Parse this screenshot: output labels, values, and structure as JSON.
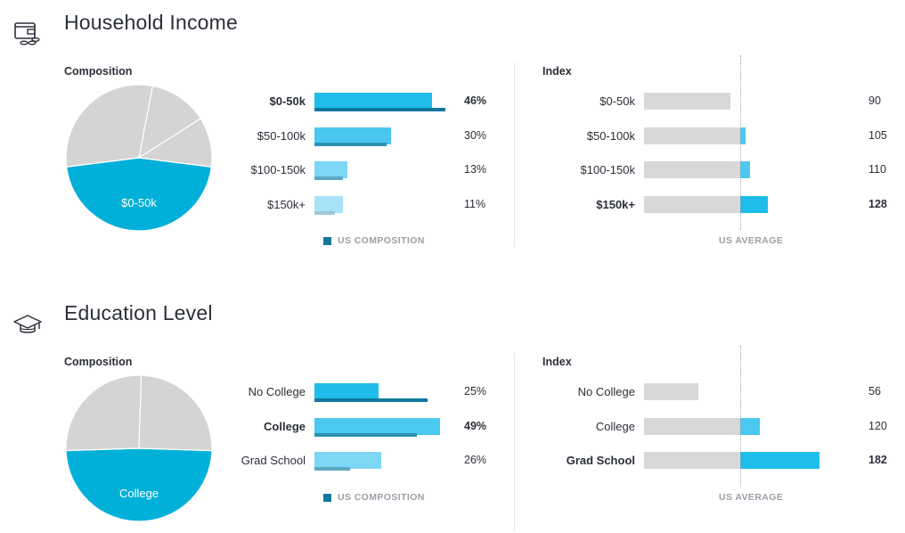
{
  "colors": {
    "pie_highlight": "#00b0d8",
    "pie_gray": "#d4d4d4",
    "pie_stroke": "#ffffff",
    "bar_scale": [
      "#1ebdea",
      "#4ac8ef",
      "#7dd6f4",
      "#a6e3f6"
    ],
    "us_scale": [
      "#12789b",
      "#2d93b3",
      "#5aa8c2",
      "#9fc9d8"
    ],
    "index_bg": "#d8d8d8",
    "index_over": "#1ebdea",
    "index_over_light": "#4ac8ef"
  },
  "sections": [
    {
      "title": "Household Income",
      "icon": "wallet-icon",
      "composition_label": "Composition",
      "index_label": "Index",
      "legend_label": "US COMPOSITION",
      "avg_label": "US AVERAGE",
      "pie_center_label": "$0-50k",
      "categories": [
        "$0-50k",
        "$50-100k",
        "$100-150k",
        "$150k+"
      ],
      "composition_bold": [
        true,
        false,
        false,
        false
      ],
      "index_bold": [
        false,
        false,
        false,
        true
      ],
      "composition_text": [
        "46%",
        "30%",
        "13%",
        "11%"
      ],
      "index_text": [
        "90",
        "105",
        "110",
        "128"
      ]
    },
    {
      "title": "Education Level",
      "icon": "graduation-cap-icon",
      "composition_label": "Composition",
      "index_label": "Index",
      "legend_label": "US COMPOSITION",
      "avg_label": "US AVERAGE",
      "pie_center_label": "College",
      "categories": [
        "No College",
        "College",
        "Grad School"
      ],
      "composition_bold": [
        false,
        true,
        false
      ],
      "index_bold": [
        false,
        false,
        true
      ],
      "composition_text": [
        "25%",
        "49%",
        "26%"
      ],
      "index_text": [
        "56",
        "120",
        "182"
      ]
    }
  ],
  "chart_data": [
    {
      "type": "pie",
      "categories": [
        "$0-50k",
        "$50-100k",
        "$100-150k",
        "$150k+"
      ],
      "values": [
        46,
        30,
        13,
        11
      ]
    },
    {
      "type": "bar",
      "categories": [
        "$0-50k",
        "$50-100k",
        "$100-150k",
        "$150k+"
      ],
      "series": [
        {
          "values": [
            46,
            30,
            13,
            11
          ]
        },
        {
          "name": "US COMPOSITION",
          "values": [
            51,
            28,
            11,
            8
          ]
        }
      ]
    },
    {
      "type": "bar",
      "categories": [
        "$0-50k",
        "$50-100k",
        "$100-150k",
        "$150k+"
      ],
      "values": [
        90,
        105,
        110,
        128
      ],
      "reference": {
        "name": "US AVERAGE",
        "value": 100
      }
    },
    {
      "type": "pie",
      "categories": [
        "No College",
        "College",
        "Grad School"
      ],
      "values": [
        25,
        49,
        26
      ]
    },
    {
      "type": "bar",
      "categories": [
        "No College",
        "College",
        "Grad School"
      ],
      "series": [
        {
          "values": [
            25,
            49,
            26
          ]
        },
        {
          "name": "US COMPOSITION",
          "values": [
            44,
            40,
            14
          ]
        }
      ]
    },
    {
      "type": "bar",
      "categories": [
        "No College",
        "College",
        "Grad School"
      ],
      "values": [
        56,
        120,
        182
      ],
      "reference": {
        "name": "US AVERAGE",
        "value": 100
      }
    }
  ]
}
